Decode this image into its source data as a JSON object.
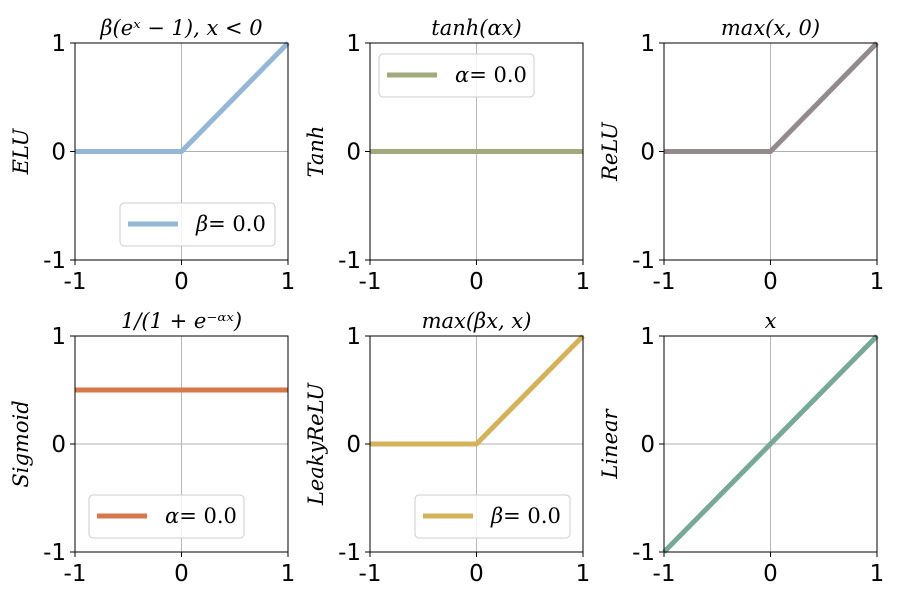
{
  "chart_data": [
    {
      "type": "line",
      "title": "β(eˣ − 1), x < 0",
      "ylabel": "ELU",
      "xlim": [
        -1,
        1
      ],
      "ylim": [
        -1,
        1
      ],
      "xticks": [
        "-1",
        "0",
        "1"
      ],
      "yticks": [
        "-1",
        "0",
        "1"
      ],
      "grid": true,
      "color": "#93b7d4",
      "legend": {
        "symbol": "β",
        "text": "= 0.0",
        "position": "lower-right"
      },
      "series": [
        {
          "name": "β= 0.0",
          "x": [
            -1,
            0,
            1
          ],
          "y": [
            0,
            0,
            1
          ]
        }
      ]
    },
    {
      "type": "line",
      "title": "tanh(αx)",
      "ylabel": "Tanh",
      "xlim": [
        -1,
        1
      ],
      "ylim": [
        -1,
        1
      ],
      "xticks": [
        "-1",
        "0",
        "1"
      ],
      "yticks": [
        "-1",
        "0",
        "1"
      ],
      "grid": true,
      "color": "#a1aa7d",
      "legend": {
        "symbol": "α",
        "text": "= 0.0",
        "position": "upper-left"
      },
      "series": [
        {
          "name": "α= 0.0",
          "x": [
            -1,
            1
          ],
          "y": [
            0,
            0
          ]
        }
      ]
    },
    {
      "type": "line",
      "title": "max(x, 0)",
      "ylabel": "ReLU",
      "xlim": [
        -1,
        1
      ],
      "ylim": [
        -1,
        1
      ],
      "xticks": [
        "-1",
        "0",
        "1"
      ],
      "yticks": [
        "-1",
        "0",
        "1"
      ],
      "grid": true,
      "color": "#928a8b",
      "legend": null,
      "series": [
        {
          "name": "ReLU",
          "x": [
            -1,
            0,
            1
          ],
          "y": [
            0,
            0,
            1
          ]
        }
      ]
    },
    {
      "type": "line",
      "title": "1/(1 + e⁻ᵅˣ)",
      "ylabel": "Sigmoid",
      "xlim": [
        -1,
        1
      ],
      "ylim": [
        -1,
        1
      ],
      "xticks": [
        "-1",
        "0",
        "1"
      ],
      "yticks": [
        "-1",
        "0",
        "1"
      ],
      "grid": true,
      "color": "#d7784a",
      "legend": {
        "symbol": "α",
        "text": "= 0.0",
        "position": "lower-left"
      },
      "series": [
        {
          "name": "α= 0.0",
          "x": [
            -1,
            1
          ],
          "y": [
            0.5,
            0.5
          ]
        }
      ]
    },
    {
      "type": "line",
      "title": "max(βx, x)",
      "ylabel": "LeakyReLU",
      "xlim": [
        -1,
        1
      ],
      "ylim": [
        -1,
        1
      ],
      "xticks": [
        "-1",
        "0",
        "1"
      ],
      "yticks": [
        "-1",
        "0",
        "1"
      ],
      "grid": true,
      "color": "#d4b25c",
      "legend": {
        "symbol": "β",
        "text": "= 0.0",
        "position": "lower-right"
      },
      "series": [
        {
          "name": "β= 0.0",
          "x": [
            -1,
            0,
            1
          ],
          "y": [
            0,
            0,
            1
          ]
        }
      ]
    },
    {
      "type": "line",
      "title": "x",
      "ylabel": "Linear",
      "xlim": [
        -1,
        1
      ],
      "ylim": [
        -1,
        1
      ],
      "xticks": [
        "-1",
        "0",
        "1"
      ],
      "yticks": [
        "-1",
        "0",
        "1"
      ],
      "grid": true,
      "color": "#78a898",
      "legend": null,
      "series": [
        {
          "name": "Linear",
          "x": [
            -1,
            1
          ],
          "y": [
            -1,
            1
          ]
        }
      ]
    }
  ]
}
